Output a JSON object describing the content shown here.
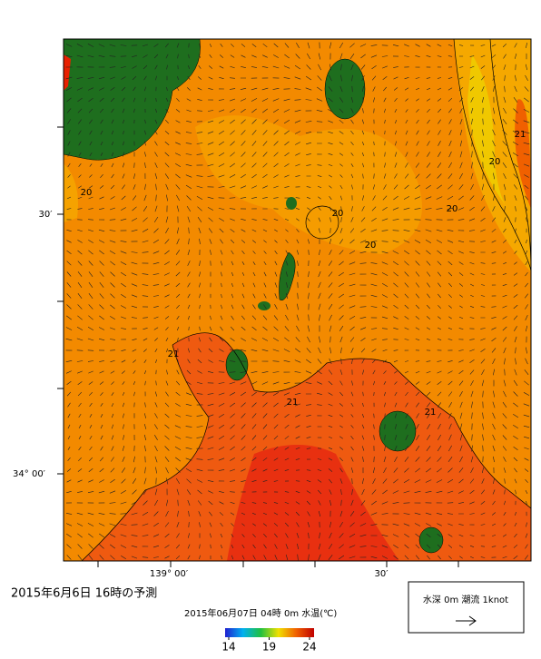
{
  "map": {
    "lat_labels": [
      "30′",
      "34° 00′"
    ],
    "lon_labels": [
      "139° 00′",
      "30′"
    ],
    "contour_labels": [
      "20",
      "20",
      "20",
      "20",
      "20",
      "21",
      "21",
      "21",
      "21"
    ]
  },
  "caption": {
    "title": "2015年6月6日 16時の予測",
    "subtitle": "2015年06月07日 04時 0m 水温(℃)"
  },
  "colorbar": {
    "ticks": [
      14,
      19,
      24
    ]
  },
  "legend": {
    "text": "水深 0m 潮流 1knot"
  }
}
